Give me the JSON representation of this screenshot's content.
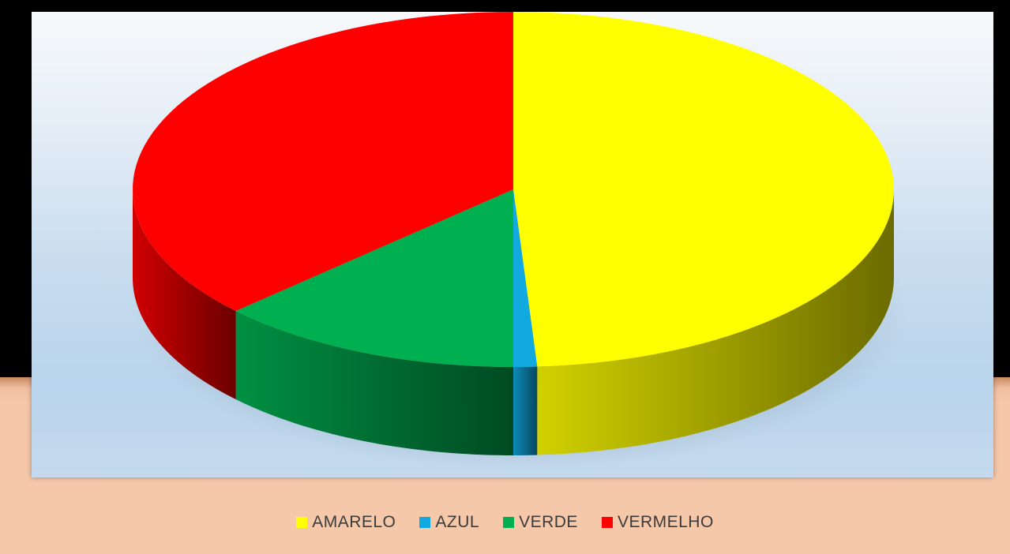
{
  "chart_data": {
    "type": "pie",
    "style": "3d",
    "title": "",
    "slices": [
      {
        "label": "AMARELO",
        "value": 49,
        "color": "#ffff00"
      },
      {
        "label": "AZUL",
        "value": 1,
        "color": "#10a9e0"
      },
      {
        "label": "VERDE",
        "value": 13,
        "color": "#00b050"
      },
      {
        "label": "VERMELHO",
        "value": 37,
        "color": "#ff0000"
      }
    ],
    "start_angle_deg": 0,
    "direction": "clockwise",
    "legend": {
      "placement": "bottom",
      "entries": [
        "AMARELO",
        "AZUL",
        "VERDE",
        "VERMELHO"
      ]
    }
  }
}
